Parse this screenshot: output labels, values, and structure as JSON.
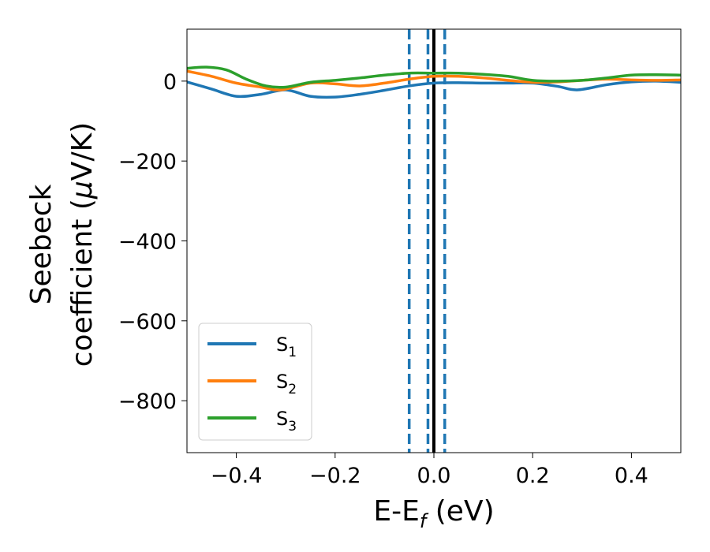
{
  "chart_data": {
    "type": "line",
    "title": "",
    "xlabel": "E-E",
    "xlabel_sub": "f",
    "xlabel_unit": " (eV)",
    "ylabel_line1": "Seebeck",
    "ylabel_line2": "coefficient  (",
    "ylabel_mu": "μ",
    "ylabel_unit": "V/K)",
    "xlim": [
      -0.5,
      0.5
    ],
    "ylim": [
      -930,
      130
    ],
    "xticks": [
      -0.4,
      -0.2,
      0.0,
      0.2,
      0.4
    ],
    "xtick_labels": [
      "−0.4",
      "−0.2",
      "0.0",
      "0.2",
      "0.4"
    ],
    "yticks": [
      0,
      -200,
      -400,
      -600,
      -800
    ],
    "ytick_labels": [
      "0",
      "−200",
      "−400",
      "−600",
      "−800"
    ],
    "grid": false,
    "legend_position": "lower-left",
    "series": [
      {
        "name": "S",
        "name_sub": "1",
        "color": "#1f77b4",
        "x": [
          -0.5,
          -0.45,
          -0.4,
          -0.35,
          -0.3,
          -0.25,
          -0.2,
          -0.15,
          -0.1,
          -0.05,
          0.0,
          0.05,
          0.1,
          0.15,
          0.2,
          0.25,
          0.29,
          0.35,
          0.4,
          0.45,
          0.5
        ],
        "y": [
          -2,
          -20,
          -38,
          -33,
          -22,
          -38,
          -40,
          -33,
          -23,
          -12,
          -5,
          -4,
          -5,
          -5,
          -5,
          -13,
          -22,
          -9,
          -2,
          0,
          -3
        ]
      },
      {
        "name": "S",
        "name_sub": "2",
        "color": "#ff7f0e",
        "x": [
          -0.5,
          -0.45,
          -0.4,
          -0.35,
          -0.31,
          -0.25,
          -0.2,
          -0.15,
          -0.1,
          -0.05,
          0.0,
          0.05,
          0.1,
          0.15,
          0.2,
          0.25,
          0.3,
          0.35,
          0.4,
          0.45,
          0.5
        ],
        "y": [
          25,
          12,
          -5,
          -15,
          -22,
          -5,
          -7,
          -12,
          -5,
          5,
          12,
          12,
          8,
          2,
          -3,
          -2,
          2,
          5,
          3,
          2,
          3
        ]
      },
      {
        "name": "S",
        "name_sub": "3",
        "color": "#2ca02c",
        "x": [
          -0.5,
          -0.46,
          -0.42,
          -0.38,
          -0.34,
          -0.3,
          -0.25,
          -0.2,
          -0.15,
          -0.1,
          -0.05,
          0.0,
          0.05,
          0.1,
          0.15,
          0.2,
          0.25,
          0.3,
          0.35,
          0.4,
          0.45,
          0.5
        ],
        "y": [
          32,
          35,
          28,
          5,
          -12,
          -15,
          -3,
          2,
          8,
          15,
          20,
          20,
          20,
          17,
          12,
          2,
          0,
          2,
          8,
          15,
          16,
          15
        ]
      }
    ],
    "vlines": [
      {
        "x": -0.05,
        "color": "#1f77b4",
        "style": "dashed"
      },
      {
        "x": -0.012,
        "color": "#1f77b4",
        "style": "dashed"
      },
      {
        "x": 0.0,
        "color": "#000000",
        "style": "solid"
      },
      {
        "x": 0.022,
        "color": "#1f77b4",
        "style": "dashed"
      }
    ]
  }
}
